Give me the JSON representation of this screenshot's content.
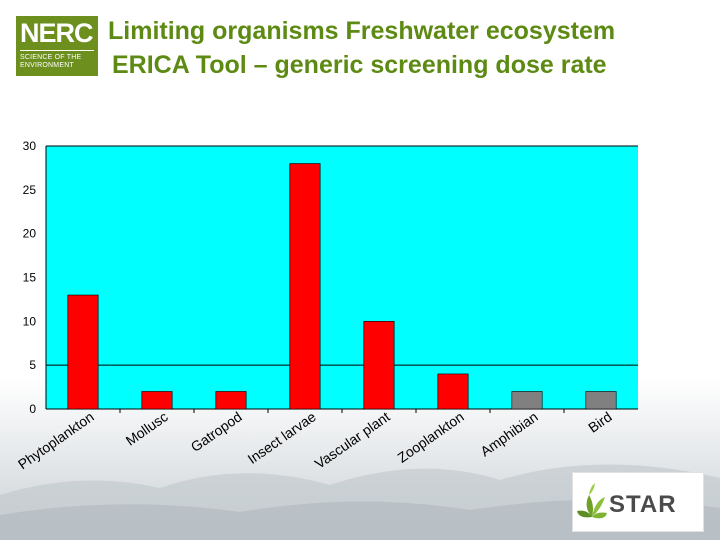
{
  "header": {
    "title_line1": "Limiting organisms Freshwater ecosystem",
    "title_line2": "ERICA Tool – generic screening dose rate"
  },
  "logos": {
    "nerc": {
      "big": "NERC",
      "line1": "SCIENCE OF THE",
      "line2": "ENVIRONMENT",
      "color": "#6d8f1e"
    },
    "star": {
      "word": "STAR",
      "icon": "leaf-icon",
      "color": "#6fa128"
    }
  },
  "chart_data": {
    "type": "bar",
    "title": "",
    "xlabel": "",
    "ylabel": "",
    "ylim": [
      0,
      30
    ],
    "yticks": [
      0,
      5,
      10,
      15,
      20,
      25,
      30
    ],
    "grid": {
      "horizontal_lines_at": [
        5,
        30
      ]
    },
    "plot_background": "#00ffff",
    "categories": [
      "Phytoplankton",
      "Mollusc",
      "Gatropod",
      "Insect larvae",
      "Vascular plant",
      "Zooplankton",
      "Amphibian",
      "Bird"
    ],
    "values": [
      13,
      2,
      2,
      28,
      10,
      4,
      2,
      2
    ],
    "bar_colors": [
      "#ff0000",
      "#ff0000",
      "#ff0000",
      "#ff0000",
      "#ff0000",
      "#ff0000",
      "#808080",
      "#808080"
    ]
  }
}
